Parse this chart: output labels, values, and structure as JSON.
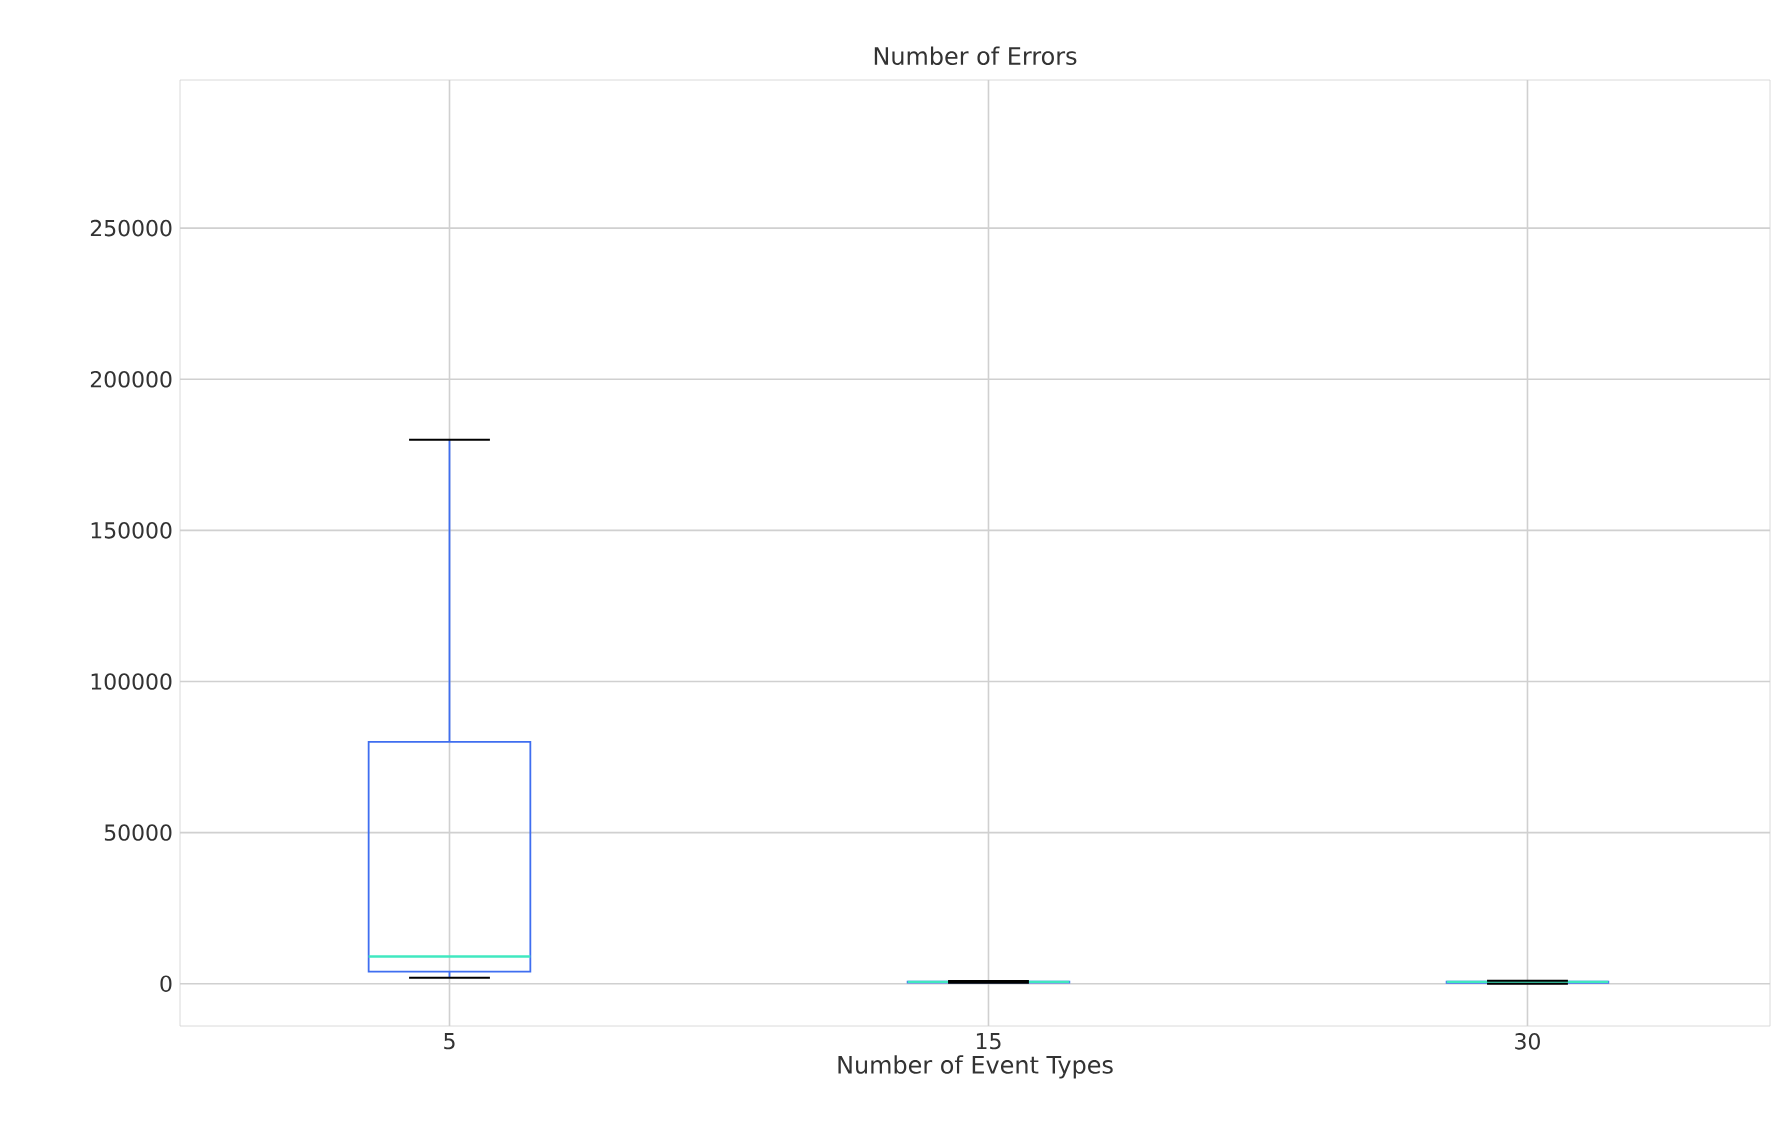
{
  "chart_data": {
    "type": "box",
    "title": "Number of Errors",
    "xlabel": "Number of Event Types",
    "categories": [
      "5",
      "15",
      "30"
    ],
    "boxes": [
      {
        "low": 2000,
        "q1": 4000,
        "median": 9000,
        "q3": 80000,
        "high": 180000
      },
      {
        "low": 300,
        "q1": 400,
        "median": 600,
        "q3": 700,
        "high": 900
      },
      {
        "low": 0,
        "q1": 300,
        "median": 600,
        "q3": 700,
        "high": 1000
      }
    ],
    "color": "#3f6ef0",
    "ylim": [
      -14000,
      299000
    ],
    "yticks": [
      0,
      50000,
      100000,
      150000,
      200000,
      250000
    ],
    "grid": true
  }
}
